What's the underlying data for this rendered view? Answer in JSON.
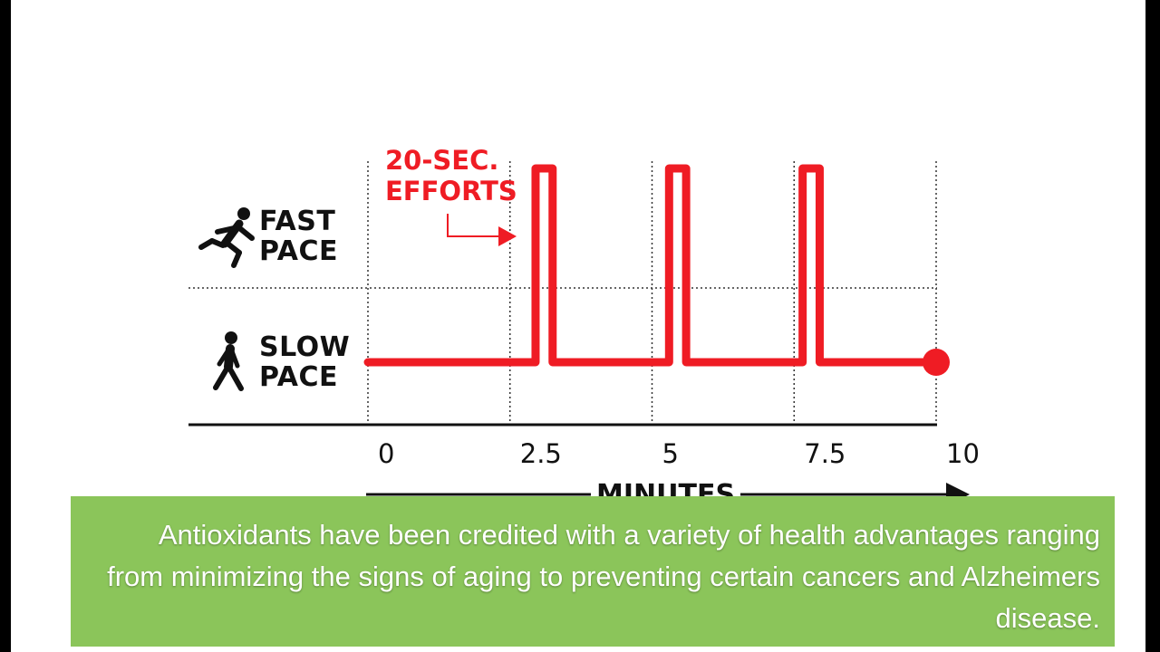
{
  "chart_data": {
    "type": "line",
    "title": "",
    "xlabel": "MINUTES",
    "ylabel": "",
    "xlim": [
      0,
      10
    ],
    "x_ticks": [
      "0",
      "2.5",
      "5",
      "7.5",
      "10"
    ],
    "y_levels": [
      "SLOW PACE",
      "FAST PACE"
    ],
    "series": [
      {
        "x": [
          0,
          2.95,
          2.95,
          3.25,
          3.25,
          5.3,
          5.3,
          5.6,
          5.6,
          7.65,
          7.65,
          7.95,
          7.95,
          10
        ],
        "y": [
          0,
          0,
          1,
          1,
          0,
          0,
          1,
          1,
          0,
          0,
          1,
          1,
          0,
          0
        ]
      }
    ],
    "annotation": {
      "lines": [
        "20-SEC.",
        "EFFORTS"
      ]
    },
    "grid": true,
    "colors": {
      "line": "#ef1c24",
      "axis": "#111111",
      "grid": "#333333"
    }
  },
  "icons": {
    "fast": "running-person-icon",
    "slow": "walking-person-icon"
  },
  "caption": "Antioxidants have been credited with a variety of health advantages ranging from minimizing the signs of aging to preventing certain cancers and Alzheimers disease."
}
